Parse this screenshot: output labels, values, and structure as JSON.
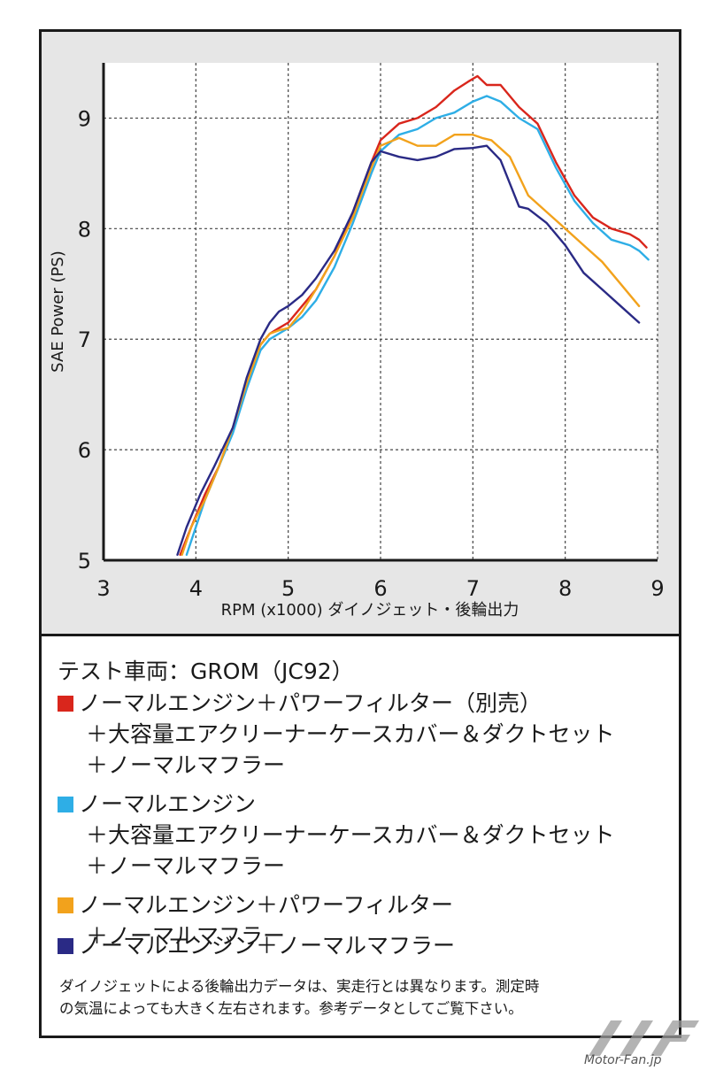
{
  "chart_data": {
    "type": "line",
    "title": "",
    "xlabel": "RPM (x1000) ダイノジェット・後輪出力",
    "ylabel": "SAE Power (PS)",
    "xlim": [
      3,
      9
    ],
    "ylim": [
      5,
      9.5
    ],
    "xticks": [
      3,
      4,
      5,
      6,
      7,
      8,
      9
    ],
    "yticks": [
      5,
      6,
      7,
      8,
      9
    ],
    "grid": true,
    "series": [
      {
        "color": "#d9261c",
        "x": [
          3.83,
          3.95,
          4.1,
          4.25,
          4.4,
          4.55,
          4.7,
          4.8,
          4.9,
          5.0,
          5.15,
          5.3,
          5.5,
          5.7,
          5.9,
          6.0,
          6.2,
          6.4,
          6.6,
          6.8,
          6.95,
          7.05,
          7.15,
          7.3,
          7.5,
          7.7,
          7.9,
          8.1,
          8.3,
          8.5,
          8.7,
          8.8,
          8.88
        ],
        "y": [
          5.05,
          5.3,
          5.6,
          5.85,
          6.2,
          6.6,
          6.95,
          7.05,
          7.1,
          7.15,
          7.3,
          7.45,
          7.75,
          8.15,
          8.6,
          8.8,
          8.95,
          9.0,
          9.1,
          9.25,
          9.33,
          9.38,
          9.3,
          9.3,
          9.1,
          8.95,
          8.6,
          8.3,
          8.1,
          8.0,
          7.95,
          7.9,
          7.83
        ]
      },
      {
        "color": "#2eaee6",
        "x": [
          3.9,
          4.0,
          4.1,
          4.25,
          4.4,
          4.55,
          4.7,
          4.8,
          4.9,
          5.0,
          5.15,
          5.3,
          5.5,
          5.7,
          5.9,
          6.0,
          6.2,
          6.4,
          6.6,
          6.8,
          7.0,
          7.15,
          7.3,
          7.5,
          7.7,
          7.9,
          8.1,
          8.3,
          8.5,
          8.7,
          8.8,
          8.9
        ],
        "y": [
          5.05,
          5.3,
          5.55,
          5.85,
          6.15,
          6.55,
          6.9,
          7.0,
          7.05,
          7.1,
          7.2,
          7.35,
          7.65,
          8.05,
          8.5,
          8.7,
          8.85,
          8.9,
          9.0,
          9.05,
          9.15,
          9.2,
          9.15,
          9.0,
          8.9,
          8.55,
          8.25,
          8.05,
          7.9,
          7.85,
          7.8,
          7.72
        ]
      },
      {
        "color": "#f2a21c",
        "x": [
          3.85,
          3.95,
          4.1,
          4.25,
          4.4,
          4.55,
          4.7,
          4.8,
          4.9,
          5.0,
          5.15,
          5.3,
          5.5,
          5.7,
          5.9,
          6.0,
          6.2,
          6.4,
          6.6,
          6.8,
          7.0,
          7.1,
          7.2,
          7.4,
          7.6,
          7.8,
          8.0,
          8.2,
          8.4,
          8.6,
          8.8
        ],
        "y": [
          5.05,
          5.3,
          5.55,
          5.85,
          6.2,
          6.6,
          6.95,
          7.05,
          7.08,
          7.1,
          7.25,
          7.45,
          7.75,
          8.1,
          8.55,
          8.75,
          8.82,
          8.75,
          8.75,
          8.85,
          8.85,
          8.82,
          8.8,
          8.65,
          8.3,
          8.15,
          8.0,
          7.85,
          7.7,
          7.5,
          7.3
        ]
      },
      {
        "color": "#2a2a85",
        "x": [
          3.8,
          3.9,
          4.05,
          4.2,
          4.4,
          4.55,
          4.7,
          4.8,
          4.9,
          5.0,
          5.15,
          5.3,
          5.5,
          5.7,
          5.9,
          6.0,
          6.2,
          6.4,
          6.6,
          6.8,
          7.0,
          7.15,
          7.3,
          7.5,
          7.6,
          7.8,
          8.0,
          8.2,
          8.4,
          8.6,
          8.8
        ],
        "y": [
          5.05,
          5.3,
          5.6,
          5.85,
          6.2,
          6.65,
          7.0,
          7.15,
          7.25,
          7.3,
          7.4,
          7.55,
          7.8,
          8.15,
          8.6,
          8.7,
          8.65,
          8.62,
          8.65,
          8.72,
          8.73,
          8.75,
          8.62,
          8.2,
          8.18,
          8.05,
          7.85,
          7.6,
          7.45,
          7.3,
          7.15
        ]
      }
    ]
  },
  "legend": {
    "title": "テスト車両：GROM（JC92）",
    "items": [
      {
        "color": "#d9261c",
        "lines": [
          "ノーマルエンジン＋パワーフィルター（別売）",
          "＋大容量エアクリーナーケースカバー＆ダクトセット",
          "＋ノーマルマフラー"
        ]
      },
      {
        "color": "#2eaee6",
        "lines": [
          "ノーマルエンジン",
          "＋大容量エアクリーナーケースカバー＆ダクトセット",
          "＋ノーマルマフラー"
        ]
      },
      {
        "color": "#f2a21c",
        "lines": [
          "ノーマルエンジン＋パワーフィルター",
          "＋ノーマルマフラー"
        ]
      },
      {
        "color": "#2a2a85",
        "lines": [
          "ノーマルエンジン＋ノーマルマフラー"
        ]
      }
    ]
  },
  "note": {
    "line1": "ダイノジェットによる後輪出力データは、実走行とは異なります。測定時",
    "line2": "の気温によっても大きく左右されます。参考データとしてご覧下さい。"
  },
  "watermark": {
    "text": "Motor-Fan.jp"
  }
}
